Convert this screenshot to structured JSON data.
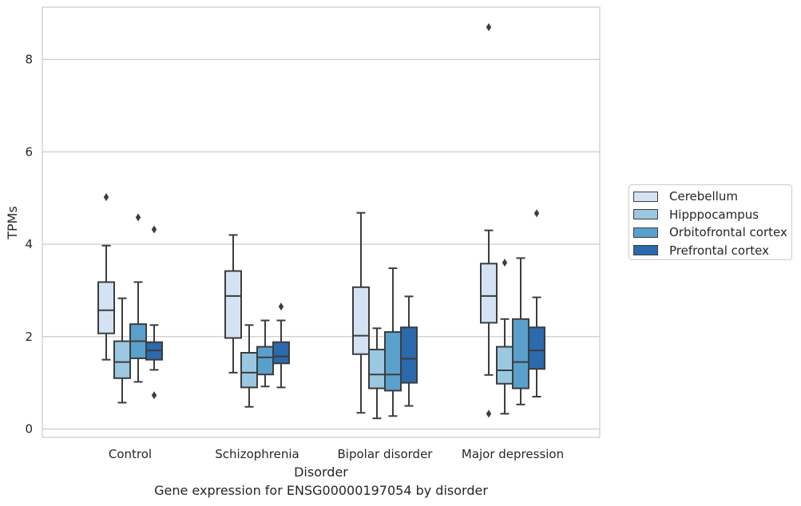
{
  "chart_data": {
    "type": "boxplot",
    "title": "Gene expression for ENSG00000197054 by disorder",
    "xlabel": "Disorder",
    "ylabel": "TPMs",
    "ylim": [
      -0.2,
      9.15
    ],
    "yticks": [
      0,
      2,
      4,
      6,
      8
    ],
    "grid": true,
    "legend_position": "right",
    "categories": [
      "Control",
      "Schizophrenia",
      "Bipolar disorder",
      "Major depression"
    ],
    "series": [
      {
        "name": "Cerebellum",
        "color": "#d3e3f3",
        "boxes": [
          {
            "whislo": 1.5,
            "q1": 2.07,
            "med": 2.57,
            "q3": 3.18,
            "whishi": 3.97,
            "fliers": [
              5.02
            ]
          },
          {
            "whislo": 1.22,
            "q1": 1.97,
            "med": 2.88,
            "q3": 3.42,
            "whishi": 4.2,
            "fliers": []
          },
          {
            "whislo": 0.35,
            "q1": 1.62,
            "med": 2.02,
            "q3": 3.07,
            "whishi": 4.68,
            "fliers": []
          },
          {
            "whislo": 1.17,
            "q1": 2.3,
            "med": 2.88,
            "q3": 3.58,
            "whishi": 4.3,
            "fliers": [
              8.7,
              0.33
            ]
          }
        ]
      },
      {
        "name": "Hipppocampus",
        "color": "#9ac8e0",
        "boxes": [
          {
            "whislo": 0.57,
            "q1": 1.1,
            "med": 1.45,
            "q3": 1.9,
            "whishi": 2.83,
            "fliers": []
          },
          {
            "whislo": 0.48,
            "q1": 0.9,
            "med": 1.22,
            "q3": 1.65,
            "whishi": 2.25,
            "fliers": []
          },
          {
            "whislo": 0.23,
            "q1": 0.88,
            "med": 1.18,
            "q3": 1.72,
            "whishi": 2.18,
            "fliers": []
          },
          {
            "whislo": 0.33,
            "q1": 0.98,
            "med": 1.27,
            "q3": 1.78,
            "whishi": 2.38,
            "fliers": [
              3.6
            ]
          }
        ]
      },
      {
        "name": "Orbitofrontal cortex",
        "color": "#5aa0cd",
        "boxes": [
          {
            "whislo": 1.02,
            "q1": 1.53,
            "med": 1.9,
            "q3": 2.27,
            "whishi": 3.18,
            "fliers": [
              4.58
            ]
          },
          {
            "whislo": 0.92,
            "q1": 1.18,
            "med": 1.55,
            "q3": 1.78,
            "whishi": 2.35,
            "fliers": []
          },
          {
            "whislo": 0.28,
            "q1": 0.83,
            "med": 1.18,
            "q3": 2.1,
            "whishi": 3.48,
            "fliers": []
          },
          {
            "whislo": 0.53,
            "q1": 0.88,
            "med": 1.45,
            "q3": 2.38,
            "whishi": 3.7,
            "fliers": []
          }
        ]
      },
      {
        "name": "Prefrontal cortex",
        "color": "#2a6aad",
        "boxes": [
          {
            "whislo": 1.28,
            "q1": 1.5,
            "med": 1.7,
            "q3": 1.88,
            "whishi": 2.25,
            "fliers": [
              4.32,
              0.73
            ]
          },
          {
            "whislo": 0.9,
            "q1": 1.42,
            "med": 1.57,
            "q3": 1.88,
            "whishi": 2.35,
            "fliers": [
              2.65
            ]
          },
          {
            "whislo": 0.5,
            "q1": 1.0,
            "med": 1.52,
            "q3": 2.2,
            "whishi": 2.87,
            "fliers": []
          },
          {
            "whislo": 0.7,
            "q1": 1.3,
            "med": 1.7,
            "q3": 2.2,
            "whishi": 2.85,
            "fliers": [
              4.67
            ]
          }
        ]
      }
    ]
  }
}
